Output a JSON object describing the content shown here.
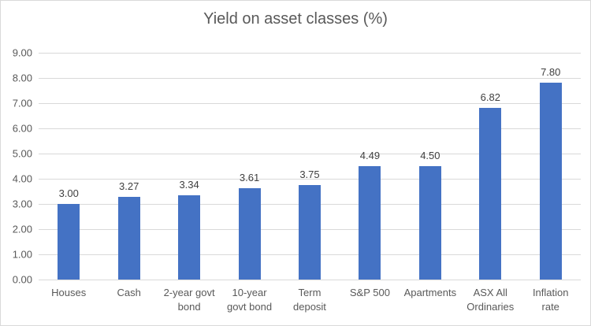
{
  "chart_data": {
    "type": "bar",
    "title": "Yield on asset classes (%)",
    "categories": [
      "Houses",
      "Cash",
      "2-year govt\nbond",
      "10-year\ngovt bond",
      "Term\ndeposit",
      "S&P 500",
      "Apartments",
      "ASX All\nOrdinaries",
      "Inflation\nrate"
    ],
    "values": [
      3.0,
      3.27,
      3.34,
      3.61,
      3.75,
      4.49,
      4.5,
      6.82,
      7.8
    ],
    "value_labels": [
      "3.00",
      "3.27",
      "3.34",
      "3.61",
      "3.75",
      "4.49",
      "4.50",
      "6.82",
      "7.80"
    ],
    "y_ticks": [
      9,
      8,
      7,
      6,
      5,
      4,
      3,
      2,
      1,
      0
    ],
    "y_tick_labels": [
      "9.00",
      "8.00",
      "7.00",
      "6.00",
      "5.00",
      "4.00",
      "3.00",
      "2.00",
      "1.00",
      "0.00"
    ],
    "ylim": [
      0,
      9
    ],
    "xlabel": "",
    "ylabel": "",
    "grid": "on",
    "legend": "none",
    "bar_color": "#4472c4",
    "gridline_color": "#d9d9d9",
    "title_color": "#595959",
    "axis_text_color": "#595959",
    "data_label_color": "#404040"
  }
}
